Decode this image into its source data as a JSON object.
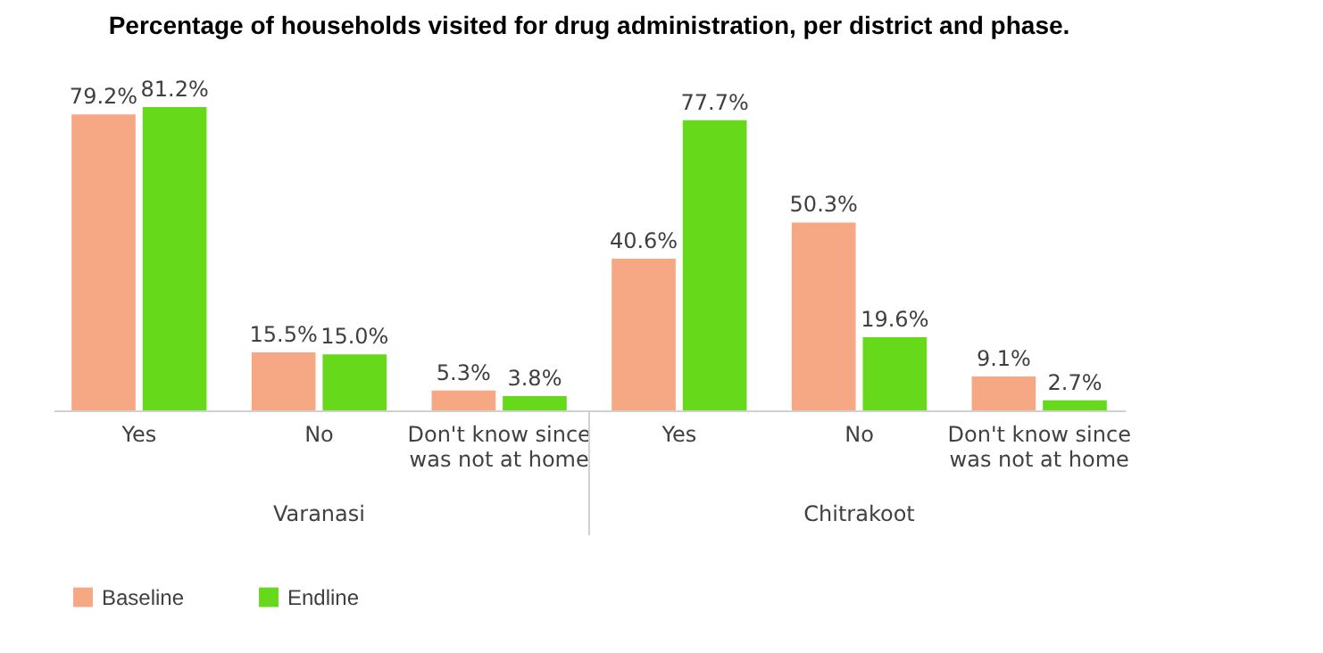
{
  "chart_data": {
    "type": "bar",
    "title": "Percentage of households visited for drug administration, per district and phase.",
    "categories": [
      "Yes",
      "No",
      "Don't know since was not at home",
      "Yes",
      "No",
      "Don't know since was not at home"
    ],
    "annotations": [
      "Varanasi",
      "Chitrakoot"
    ],
    "series": [
      {
        "name": "Baseline",
        "color": "#f5a883",
        "values": [
          79.2,
          15.5,
          5.3,
          40.6,
          50.3,
          9.1
        ],
        "value_labels": [
          "79.2%",
          "15.5%",
          "5.3%",
          "40.6%",
          "50.3%",
          "9.1%"
        ]
      },
      {
        "name": "Endline",
        "color": "#66d91a",
        "values": [
          81.2,
          15.0,
          3.8,
          77.7,
          19.6,
          2.7
        ],
        "value_labels": [
          "81.2%",
          "15.0%",
          "3.8%",
          "77.7%",
          "19.6%",
          "2.7%"
        ]
      }
    ],
    "legend": "bottom",
    "grid": false
  }
}
